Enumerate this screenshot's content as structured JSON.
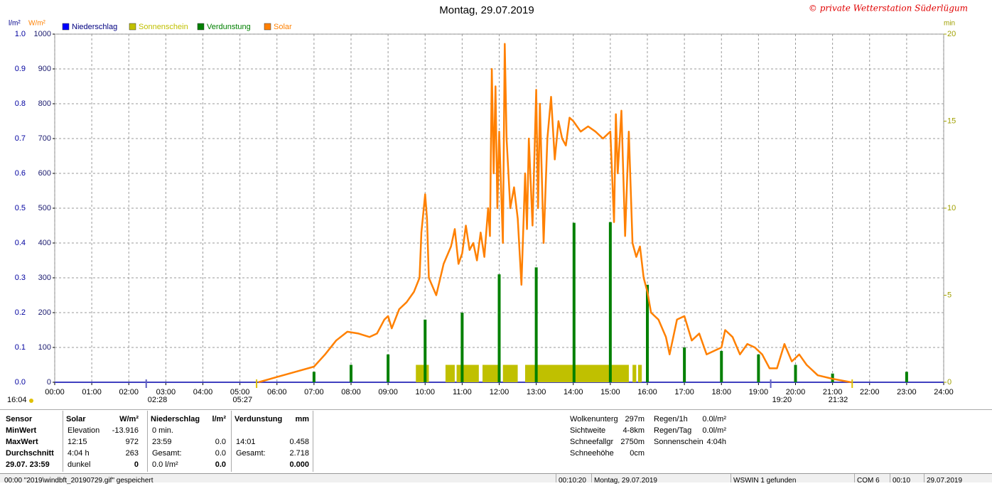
{
  "chart_data": {
    "type": "combo",
    "title": "Montag, 29.07.2019",
    "credit": "© private Wetterstation Süderlügum",
    "y3_label": "l/m²",
    "y_label": "W/m²",
    "y2_label": "min",
    "xlim": [
      0,
      24
    ],
    "xticks": [
      {
        "value": 0,
        "label": "00:00"
      },
      {
        "value": 1,
        "label": "01:00"
      },
      {
        "value": 2,
        "label": "02:00"
      },
      {
        "value": 3,
        "label": "03:00"
      },
      {
        "value": 4,
        "label": "04:00"
      },
      {
        "value": 5,
        "label": "05:00"
      },
      {
        "value": 6,
        "label": "06:00"
      },
      {
        "value": 7,
        "label": "07:00"
      },
      {
        "value": 8,
        "label": "08:00"
      },
      {
        "value": 9,
        "label": "09:00"
      },
      {
        "value": 10,
        "label": "10:00"
      },
      {
        "value": 11,
        "label": "11:00"
      },
      {
        "value": 12,
        "label": "12:00"
      },
      {
        "value": 13,
        "label": "13:00"
      },
      {
        "value": 14,
        "label": "14:00"
      },
      {
        "value": 15,
        "label": "15:00"
      },
      {
        "value": 16,
        "label": "16:00"
      },
      {
        "value": 17,
        "label": "17:00"
      },
      {
        "value": 18,
        "label": "18:00"
      },
      {
        "value": 19,
        "label": "19:00"
      },
      {
        "value": 20,
        "label": "20:00"
      },
      {
        "value": 21,
        "label": "21:00"
      },
      {
        "value": 22,
        "label": "22:00"
      },
      {
        "value": 23,
        "label": "23:00"
      },
      {
        "value": 24,
        "label": "24:00"
      }
    ],
    "ylim": [
      0,
      1000
    ],
    "yticks": [
      0,
      100,
      200,
      300,
      400,
      500,
      600,
      700,
      800,
      900,
      1000
    ],
    "y3lim": [
      0,
      1
    ],
    "y3ticks": [
      {
        "value": 0,
        "label": "0.0"
      },
      0.1,
      0.2,
      0.3,
      0.4,
      0.5,
      0.6,
      0.7,
      0.8,
      0.9,
      {
        "value": 1,
        "label": "1.0"
      }
    ],
    "y2lim": [
      0,
      20
    ],
    "y2ticks": [
      0,
      5,
      10,
      15,
      20
    ],
    "grid": true,
    "series": [
      {
        "name": "Niederschlag",
        "color": "#0000ff",
        "style": "bar",
        "axis": "y3",
        "x": [],
        "values": []
      },
      {
        "name": "Sonnenschein",
        "color": "#c0c000",
        "style": "interval",
        "axis": "y2",
        "x_start": [
          9.75,
          10.55,
          10.85,
          11.55,
          12.1,
          12.7,
          15.6,
          15.75
        ],
        "x_end": [
          10.1,
          10.8,
          11.45,
          12.0,
          12.5,
          15.5,
          15.7,
          15.85
        ],
        "values": [
          1,
          1,
          1,
          1,
          1,
          1,
          1,
          1
        ]
      },
      {
        "name": "Verdunstung",
        "color": "#008000",
        "style": "bar",
        "axis": "y3",
        "x": [
          7.0,
          8.0,
          9.0,
          10.0,
          11.0,
          12.0,
          13.0,
          14.02,
          15.0,
          16.0,
          17.0,
          18.0,
          19.0,
          20.0,
          21.0,
          23.0
        ],
        "values": [
          0.03,
          0.05,
          0.08,
          0.18,
          0.2,
          0.31,
          0.33,
          0.458,
          0.46,
          0.28,
          0.1,
          0.09,
          0.08,
          0.05,
          0.025,
          0.03
        ]
      },
      {
        "name": "Solar",
        "color": "#ff8000",
        "style": "line",
        "axis": "y",
        "x": [
          5.5,
          6.0,
          6.5,
          7.0,
          7.3,
          7.6,
          7.9,
          8.2,
          8.5,
          8.7,
          8.9,
          9.0,
          9.1,
          9.3,
          9.5,
          9.7,
          9.85,
          9.9,
          10.0,
          10.05,
          10.1,
          10.3,
          10.5,
          10.7,
          10.8,
          10.9,
          11.0,
          11.1,
          11.2,
          11.3,
          11.4,
          11.5,
          11.6,
          11.7,
          11.75,
          11.8,
          11.85,
          11.9,
          11.95,
          12.0,
          12.1,
          12.15,
          12.2,
          12.3,
          12.4,
          12.5,
          12.6,
          12.7,
          12.75,
          12.8,
          12.9,
          13.0,
          13.05,
          13.1,
          13.2,
          13.3,
          13.4,
          13.5,
          13.6,
          13.7,
          13.8,
          13.9,
          14.0,
          14.2,
          14.4,
          14.6,
          14.8,
          15.0,
          15.1,
          15.15,
          15.2,
          15.3,
          15.4,
          15.5,
          15.6,
          15.7,
          15.8,
          15.9,
          16.0,
          16.1,
          16.3,
          16.5,
          16.6,
          16.8,
          17.0,
          17.2,
          17.4,
          17.6,
          17.8,
          18.0,
          18.1,
          18.3,
          18.5,
          18.7,
          18.9,
          19.1,
          19.3,
          19.5,
          19.7,
          19.9,
          20.1,
          20.3,
          20.6,
          21.0,
          21.5
        ],
        "values": [
          0,
          15,
          30,
          45,
          80,
          120,
          145,
          140,
          130,
          140,
          180,
          190,
          155,
          210,
          230,
          260,
          300,
          430,
          540,
          470,
          300,
          250,
          340,
          390,
          440,
          340,
          370,
          450,
          380,
          400,
          350,
          430,
          360,
          500,
          420,
          900,
          600,
          850,
          500,
          720,
          400,
          972,
          700,
          500,
          560,
          470,
          280,
          600,
          440,
          700,
          450,
          840,
          500,
          800,
          400,
          700,
          820,
          640,
          750,
          700,
          680,
          760,
          750,
          720,
          735,
          720,
          700,
          720,
          460,
          770,
          600,
          780,
          420,
          720,
          400,
          360,
          390,
          300,
          260,
          200,
          180,
          130,
          80,
          180,
          190,
          120,
          140,
          80,
          90,
          100,
          150,
          130,
          80,
          110,
          100,
          80,
          40,
          40,
          110,
          60,
          80,
          50,
          20,
          10,
          0
        ]
      }
    ],
    "annotations": [
      {
        "label": "16:04"
      },
      {
        "label": "02:28",
        "x": 2.47
      },
      {
        "label": "05:27",
        "x": 5.45
      },
      {
        "label": "19:20",
        "x": 19.33
      },
      {
        "label": "21:32",
        "x": 21.53
      }
    ]
  },
  "stats": {
    "row_labels": [
      "Sensor",
      "MinWert",
      "MaxWert",
      "Durchschnitt",
      "29.07. 23:59"
    ],
    "blocks": [
      {
        "name": "Solar",
        "unit": "W/m²",
        "rows": [
          {
            "left": "Elevation",
            "right": "-13.916"
          },
          {
            "left": "12:15",
            "right": "972"
          },
          {
            "left": "4:04 h",
            "right": "263"
          },
          {
            "left": "dunkel",
            "right": "0"
          }
        ]
      },
      {
        "name": "Niederschlag",
        "unit": "l/m²",
        "rows": [
          {
            "left": "0 min."
          },
          {
            "left": "23:59",
            "right": "0.0"
          },
          {
            "left": "Gesamt:",
            "right": "0.0"
          },
          {
            "left": "0.0 l/m²",
            "right": "0.0"
          }
        ]
      },
      {
        "name": "Verdunstung",
        "unit": "mm",
        "rows": [
          {},
          {
            "left": "14:01",
            "right": "0.458"
          },
          {
            "left": "Gesamt:",
            "right": "2.718"
          },
          {
            "right": "0.000"
          }
        ]
      }
    ],
    "info": [
      [
        {
          "label": "Wolkenunterg",
          "value": "297m"
        },
        {
          "label": "Sichtweite",
          "value": "4-8km"
        },
        {
          "label": "Schneefallgr",
          "value": "2750m"
        },
        {
          "label": "Schneehöhe",
          "value": "0cm"
        }
      ],
      [
        {
          "label": "Regen/1h",
          "value": "0.0l/m²"
        },
        {
          "label": "Regen/Tag",
          "value": "0.0l/m²"
        },
        {
          "label": "Sonnenschein",
          "value": "4:04h"
        }
      ]
    ]
  },
  "statusbar": [
    "00:00  \"2019\\windbft_20190729.gif\" gespeichert",
    "00:10:20",
    "Montag, 29.07.2019",
    "WSWIN 1 gefunden",
    "COM 6",
    "00:10",
    "29.07.2019"
  ]
}
